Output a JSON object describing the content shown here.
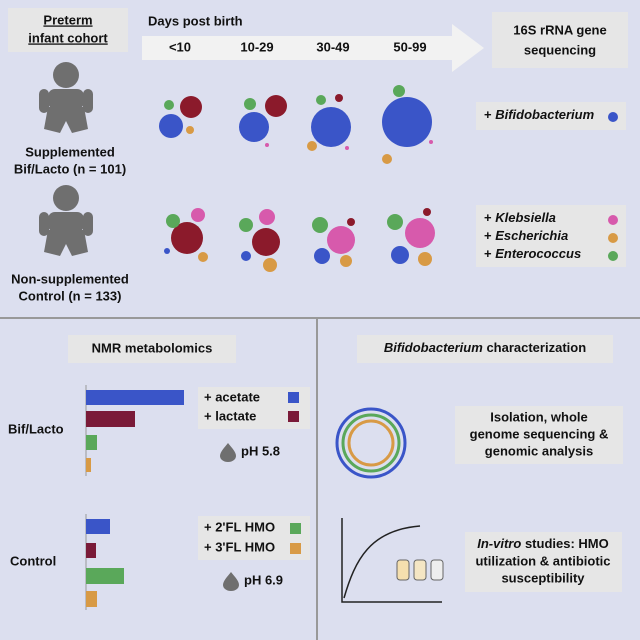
{
  "header": {
    "cohort_title": [
      "Preterm",
      "infant cohort"
    ],
    "timeline_label": "Days post birth",
    "time_bins": [
      "<10",
      "10-29",
      "30-49",
      "50-99"
    ],
    "sequencing": [
      "16S rRNA gene",
      "sequencing"
    ]
  },
  "groups": [
    {
      "label": [
        "Supplemented",
        "Bif/Lacto (n = 101)"
      ],
      "taxa": [
        {
          "prefix": "+",
          "name": "Bifidobacterium"
        }
      ]
    },
    {
      "label": [
        "Non-supplemented",
        "Control (n = 133)"
      ],
      "taxa": [
        {
          "prefix": "+",
          "name": "Klebsiella"
        },
        {
          "prefix": "+",
          "name": "Escherichia"
        },
        {
          "prefix": "+",
          "name": "Enterococcus"
        }
      ]
    }
  ],
  "metabolomics": {
    "title": "NMR metabolomics",
    "groups": [
      {
        "label": "Bif/Lacto",
        "legend": [
          "+ acetate",
          "+ lactate"
        ],
        "ph": "pH 5.8"
      },
      {
        "label": "Control",
        "legend": [
          "+ 2'FL HMO",
          "+ 3'FL HMO"
        ],
        "ph": "pH 6.9"
      }
    ]
  },
  "characterization": {
    "title_italic": "Bifidobacterium",
    "title_rest": "characterization",
    "genomics": [
      "Isolation, whole",
      "genome sequencing &",
      "genomic analysis"
    ],
    "in_vitro_italic": "In-vitro",
    "in_vitro": [
      "studies: HMO",
      "utilization & antibiotic",
      "susceptibility"
    ]
  }
}
